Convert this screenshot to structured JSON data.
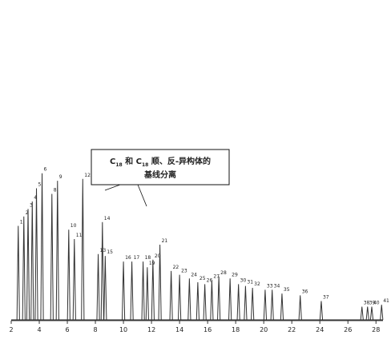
{
  "legend": [],
  "callout": {
    "lines": [
      "C",
      "18",
      "和",
      "C",
      "18",
      "顺、反-异构体的",
      "基线分离"
    ]
  },
  "chart_data": {
    "type": "line",
    "title": "",
    "xlabel": "",
    "ylabel": "",
    "x_ticks": [
      "2",
      "4",
      "6",
      "8",
      "10",
      "12",
      "14",
      "16",
      "18",
      "20",
      "22",
      "24",
      "26",
      "28"
    ],
    "xlim": [
      2,
      28.5
    ],
    "ylim": [
      0,
      1
    ],
    "grid": false,
    "series": [
      {
        "peaks": [
          {
            "label": "1",
            "x": 2.5,
            "h": 0.5
          },
          {
            "label": "2",
            "x": 2.9,
            "h": 0.55
          },
          {
            "label": "3",
            "x": 3.2,
            "h": 0.59
          },
          {
            "label": "4",
            "x": 3.5,
            "h": 0.63
          },
          {
            "label": "5",
            "x": 3.8,
            "h": 0.7
          },
          {
            "label": "6",
            "x": 4.2,
            "h": 0.78
          },
          {
            "label": "8",
            "x": 4.9,
            "h": 0.67
          },
          {
            "label": "9",
            "x": 5.3,
            "h": 0.74
          },
          {
            "label": "10",
            "x": 6.1,
            "h": 0.48
          },
          {
            "label": "11",
            "x": 6.5,
            "h": 0.43
          },
          {
            "label": "12",
            "x": 7.1,
            "h": 0.75
          },
          {
            "label": "13",
            "x": 8.2,
            "h": 0.35
          },
          {
            "label": "14",
            "x": 8.5,
            "h": 0.52
          },
          {
            "label": "15",
            "x": 8.7,
            "h": 0.34
          },
          {
            "label": "16",
            "x": 10.0,
            "h": 0.31
          },
          {
            "label": "17",
            "x": 10.6,
            "h": 0.31
          },
          {
            "label": "18",
            "x": 11.4,
            "h": 0.31
          },
          {
            "label": "19",
            "x": 11.7,
            "h": 0.28
          },
          {
            "label": "20",
            "x": 12.1,
            "h": 0.32
          },
          {
            "label": "21",
            "x": 12.6,
            "h": 0.4
          },
          {
            "label": "22",
            "x": 13.4,
            "h": 0.26
          },
          {
            "label": "23",
            "x": 14.0,
            "h": 0.24
          },
          {
            "label": "24",
            "x": 14.7,
            "h": 0.22
          },
          {
            "label": "25",
            "x": 15.3,
            "h": 0.2
          },
          {
            "label": "26",
            "x": 15.8,
            "h": 0.19
          },
          {
            "label": "27",
            "x": 16.3,
            "h": 0.21
          },
          {
            "label": "28",
            "x": 16.8,
            "h": 0.23
          },
          {
            "label": "29",
            "x": 17.6,
            "h": 0.22
          },
          {
            "label": "30",
            "x": 18.2,
            "h": 0.19
          },
          {
            "label": "31",
            "x": 18.7,
            "h": 0.18
          },
          {
            "label": "32",
            "x": 19.2,
            "h": 0.17
          },
          {
            "label": "33",
            "x": 20.1,
            "h": 0.16
          },
          {
            "label": "34",
            "x": 20.6,
            "h": 0.16
          },
          {
            "label": "35",
            "x": 21.3,
            "h": 0.14
          },
          {
            "label": "36",
            "x": 22.6,
            "h": 0.13
          },
          {
            "label": "37",
            "x": 24.1,
            "h": 0.1
          },
          {
            "label": "38",
            "x": 27.0,
            "h": 0.07
          },
          {
            "label": "39",
            "x": 27.4,
            "h": 0.07
          },
          {
            "label": "40",
            "x": 27.7,
            "h": 0.07
          },
          {
            "label": "41",
            "x": 28.4,
            "h": 0.08
          }
        ]
      }
    ]
  }
}
